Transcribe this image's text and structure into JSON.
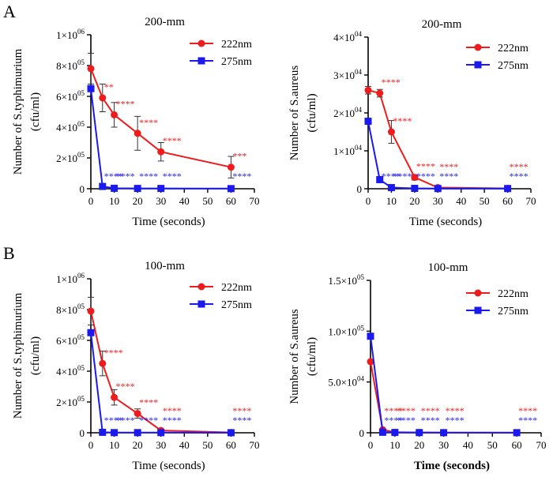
{
  "panels": [
    {
      "label": "A"
    },
    {
      "label": "B"
    }
  ],
  "colors": {
    "red": "#ee1c1c",
    "blue": "#1a1aee",
    "axis": "#000000"
  },
  "chart_data": [
    {
      "type": "line",
      "title": "200-mm",
      "xlabel": "Time (seconds)",
      "xlabel_bold": false,
      "ylabel_lines": [
        "Number of S.typhimurium",
        "(cfu/ml)"
      ],
      "xlim": [
        0,
        70
      ],
      "xticks": [
        0,
        10,
        20,
        30,
        40,
        50,
        60,
        70
      ],
      "xtick_labels": [
        "0",
        "10",
        "20",
        "30",
        "40",
        "50",
        "60",
        "70"
      ],
      "ylim": [
        0,
        1000000
      ],
      "yticks": [
        0,
        200000,
        400000,
        600000,
        800000,
        1000000
      ],
      "ytick_labels": [
        {
          "mant": "0",
          "exp": ""
        },
        {
          "mant": "2×10",
          "exp": "05"
        },
        {
          "mant": "4×10",
          "exp": "05"
        },
        {
          "mant": "6×10",
          "exp": "05"
        },
        {
          "mant": "8×10",
          "exp": "05"
        },
        {
          "mant": "1×10",
          "exp": "06"
        }
      ],
      "x": [
        0,
        5,
        10,
        20,
        30,
        60
      ],
      "series": [
        {
          "name": "222nm",
          "color": "#ee1c1c",
          "marker": "circle",
          "values": [
            780000,
            590000,
            480000,
            360000,
            240000,
            140000
          ],
          "errors": [
            100000,
            90000,
            80000,
            110000,
            60000,
            70000
          ],
          "sig": [
            "",
            "**",
            "****",
            "****",
            "****",
            "***"
          ]
        },
        {
          "name": "275nm",
          "color": "#1a1aee",
          "marker": "square",
          "values": [
            650000,
            15000,
            3000,
            2000,
            2000,
            1000
          ],
          "errors": [
            0,
            0,
            0,
            0,
            0,
            0
          ],
          "sig": [
            "",
            "****",
            "****",
            "****",
            "****",
            "****"
          ]
        }
      ]
    },
    {
      "type": "line",
      "title": "200-mm",
      "xlabel": "Time (seconds)",
      "xlabel_bold": false,
      "ylabel_lines": [
        "Number of S.aureus",
        "(cfu/ml)"
      ],
      "xlim": [
        0,
        70
      ],
      "xticks": [
        0,
        10,
        20,
        30,
        40,
        50,
        60,
        70
      ],
      "xtick_labels": [
        "0",
        "10",
        "20",
        "30",
        "40",
        "50",
        "60",
        "70"
      ],
      "ylim": [
        0,
        40000
      ],
      "yticks": [
        0,
        10000,
        20000,
        30000,
        40000
      ],
      "ytick_labels": [
        {
          "mant": "0",
          "exp": ""
        },
        {
          "mant": "1×10",
          "exp": "04"
        },
        {
          "mant": "2×10",
          "exp": "04"
        },
        {
          "mant": "3×10",
          "exp": "04"
        },
        {
          "mant": "4×10",
          "exp": "04"
        }
      ],
      "x": [
        0,
        5,
        10,
        20,
        30,
        60
      ],
      "series": [
        {
          "name": "222nm",
          "color": "#ee1c1c",
          "marker": "circle",
          "values": [
            26000,
            25200,
            15000,
            3000,
            300,
            100
          ],
          "errors": [
            1000,
            1000,
            3000,
            700,
            200,
            0
          ],
          "sig": [
            "",
            "****",
            "****",
            "****",
            "****",
            "****"
          ]
        },
        {
          "name": "275nm",
          "color": "#1a1aee",
          "marker": "square",
          "values": [
            17800,
            2400,
            300,
            100,
            50,
            50
          ],
          "errors": [
            0,
            0,
            0,
            0,
            0,
            0
          ],
          "sig": [
            "",
            "****",
            "****",
            "****",
            "****",
            "****"
          ]
        }
      ]
    },
    {
      "type": "line",
      "title": "100-mm",
      "xlabel": "Time (seconds)",
      "xlabel_bold": false,
      "ylabel_lines": [
        "Number of S.typhimurium",
        "(cfu/ml)"
      ],
      "xlim": [
        0,
        70
      ],
      "xticks": [
        0,
        10,
        20,
        30,
        40,
        50,
        60,
        70
      ],
      "xtick_labels": [
        "0",
        "10",
        "20",
        "30",
        "40",
        "50",
        "60",
        "70"
      ],
      "ylim": [
        0,
        1000000
      ],
      "yticks": [
        0,
        200000,
        400000,
        600000,
        800000,
        1000000
      ],
      "ytick_labels": [
        {
          "mant": "0",
          "exp": ""
        },
        {
          "mant": "2×10",
          "exp": "05"
        },
        {
          "mant": "4×10",
          "exp": "05"
        },
        {
          "mant": "6×10",
          "exp": "05"
        },
        {
          "mant": "8×10",
          "exp": "05"
        },
        {
          "mant": "1×10",
          "exp": "06"
        }
      ],
      "x": [
        0,
        5,
        10,
        20,
        30,
        60
      ],
      "series": [
        {
          "name": "222nm",
          "color": "#ee1c1c",
          "marker": "circle",
          "values": [
            790000,
            450000,
            230000,
            125000,
            15000,
            2000
          ],
          "errors": [
            90000,
            80000,
            50000,
            30000,
            10000,
            0
          ],
          "sig": [
            "",
            "****",
            "****",
            "****",
            "****",
            "****"
          ]
        },
        {
          "name": "275nm",
          "color": "#1a1aee",
          "marker": "square",
          "values": [
            650000,
            3000,
            1000,
            1000,
            1000,
            500
          ],
          "errors": [
            0,
            0,
            0,
            0,
            0,
            0
          ],
          "sig": [
            "",
            "****",
            "****",
            "****",
            "****",
            "****"
          ]
        }
      ]
    },
    {
      "type": "line",
      "title": "100-mm",
      "xlabel": "Time (seconds)",
      "xlabel_bold": true,
      "ylabel_lines": [
        "Number of S.aureus",
        "(cfu/ml)"
      ],
      "xlim": [
        0,
        70
      ],
      "xticks": [
        0,
        10,
        20,
        30,
        40,
        50,
        60,
        70
      ],
      "xtick_labels": [
        "0",
        "10",
        "20",
        "30",
        "40",
        "50",
        "60",
        "70"
      ],
      "ylim": [
        0,
        150000
      ],
      "yticks": [
        0,
        50000,
        100000,
        150000
      ],
      "ytick_labels": [
        {
          "mant": "0",
          "exp": ""
        },
        {
          "mant": "5.0×10",
          "exp": "04"
        },
        {
          "mant": "1.0×10",
          "exp": "05"
        },
        {
          "mant": "1.5×10",
          "exp": "05"
        }
      ],
      "x": [
        0,
        5,
        10,
        20,
        30,
        60
      ],
      "series": [
        {
          "name": "222nm",
          "color": "#ee1c1c",
          "marker": "circle",
          "values": [
            70000,
            3000,
            500,
            300,
            200,
            100
          ],
          "errors": [
            0,
            0,
            0,
            0,
            0,
            0
          ],
          "sig": [
            "",
            "****",
            "****",
            "****",
            "****",
            "****"
          ]
        },
        {
          "name": "275nm",
          "color": "#1a1aee",
          "marker": "square",
          "values": [
            95000,
            500,
            300,
            200,
            100,
            100
          ],
          "errors": [
            0,
            0,
            0,
            0,
            0,
            0
          ],
          "sig": [
            "",
            "****",
            "****",
            "****",
            "****",
            "****"
          ]
        }
      ]
    }
  ]
}
